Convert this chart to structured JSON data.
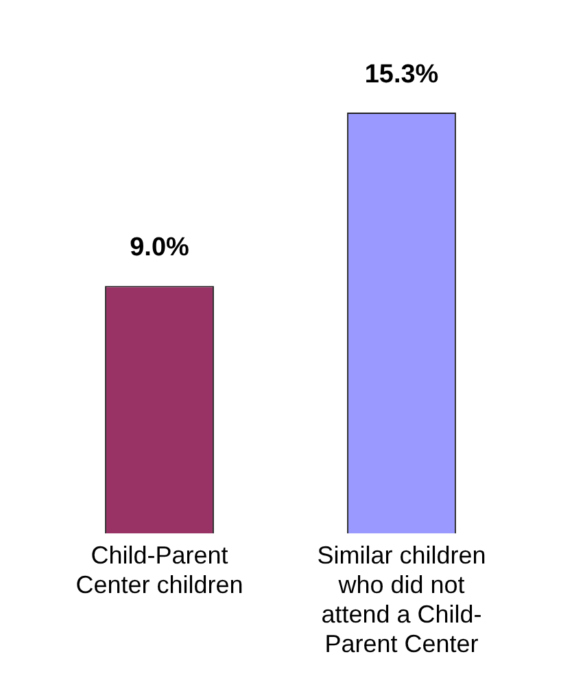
{
  "chart_data": {
    "type": "bar",
    "categories": [
      "Child-Parent Center children",
      "Similar children who did not attend a Child-Parent Center"
    ],
    "values": [
      9.0,
      15.3
    ],
    "colors": [
      "#993366",
      "#9999ff"
    ],
    "value_labels": [
      "9.0%",
      "15.3%"
    ],
    "grid": false,
    "legend": false
  }
}
